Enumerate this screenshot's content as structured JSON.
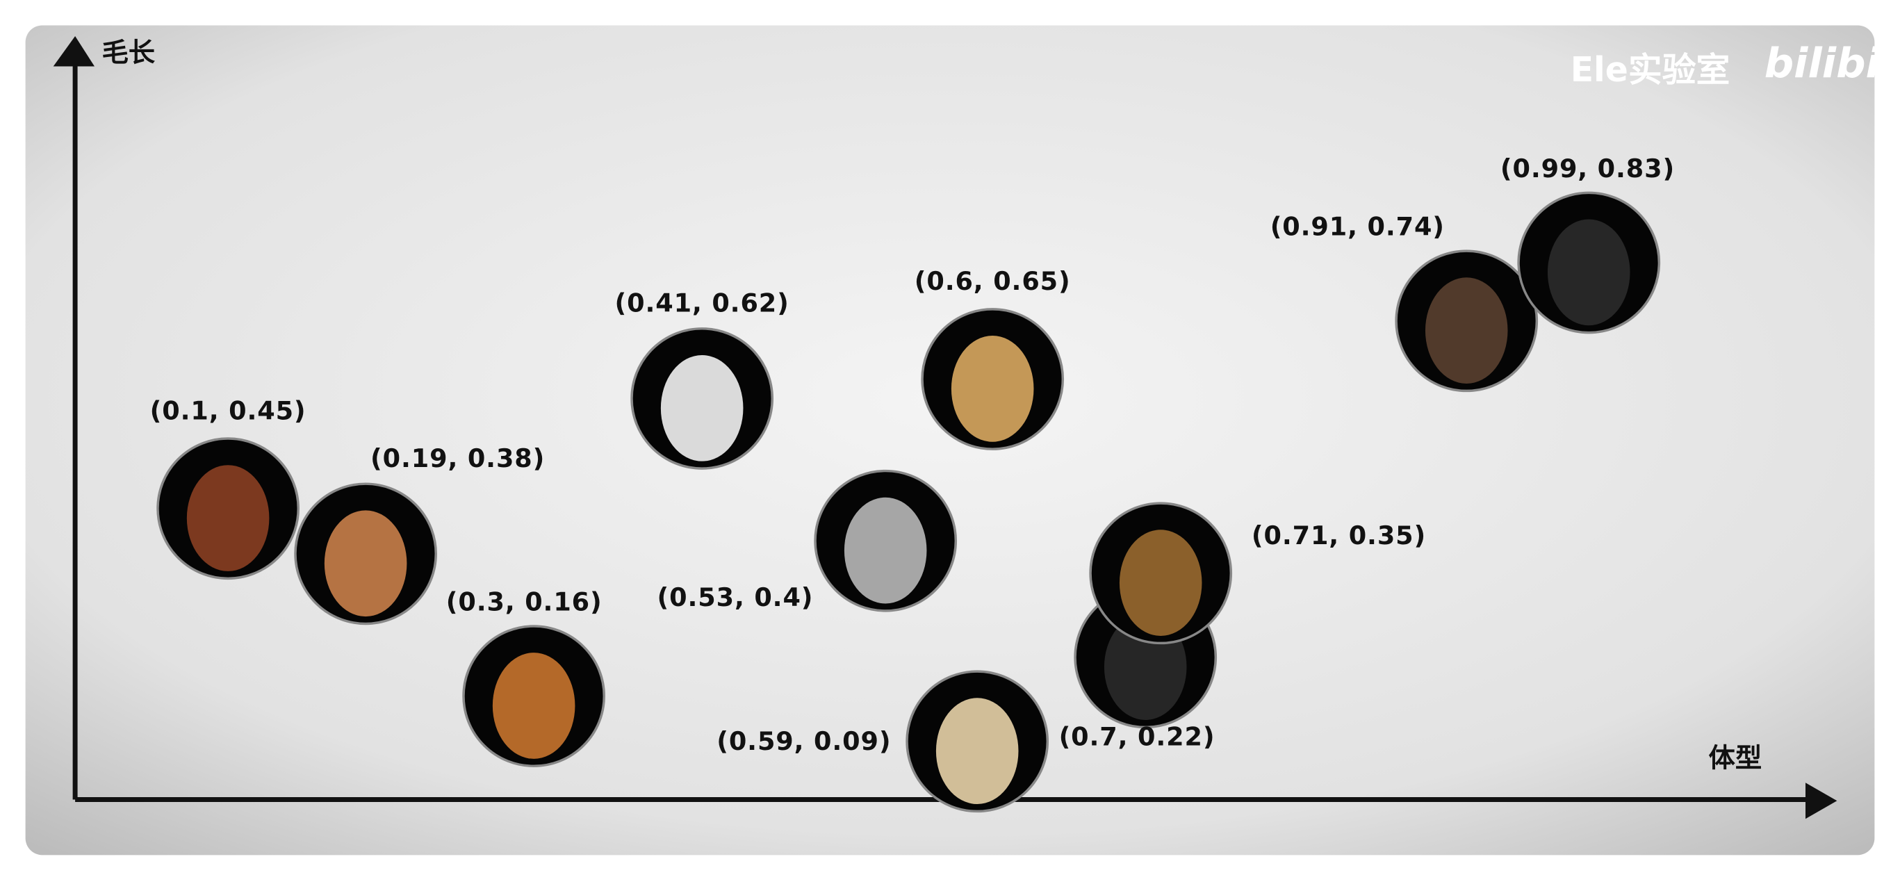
{
  "chart_data": {
    "type": "scatter",
    "x_label": "体型",
    "y_label": "毛长",
    "watermark": "Ele实验室",
    "logo": "bilibili",
    "x": [
      0.1,
      0.19,
      0.3,
      0.41,
      0.53,
      0.59,
      0.6,
      0.7,
      0.71,
      0.91,
      0.99
    ],
    "values": [
      0.45,
      0.38,
      0.16,
      0.62,
      0.4,
      0.09,
      0.65,
      0.22,
      0.35,
      0.74,
      0.83
    ],
    "value_labels": [
      "(0.1, 0.45)",
      "(0.19, 0.38)",
      "(0.3, 0.16)",
      "(0.41, 0.62)",
      "(0.53, 0.4)",
      "(0.59, 0.09)",
      "(0.6, 0.65)",
      "(0.7, 0.22)",
      "(0.71, 0.35)",
      "(0.91, 0.74)",
      "(0.99, 0.83)"
    ],
    "colors": [
      "#8a3f22",
      "#c9804a",
      "#c8742e",
      "#f2f2f2",
      "#b8b8b8",
      "#e8d3a8",
      "#d9a860",
      "#2a2a2a",
      "#9a6a30",
      "#5a4030",
      "#2b2b2b"
    ],
    "xlim": [
      0,
      1.1
    ],
    "ylim": [
      0,
      1.1
    ]
  }
}
